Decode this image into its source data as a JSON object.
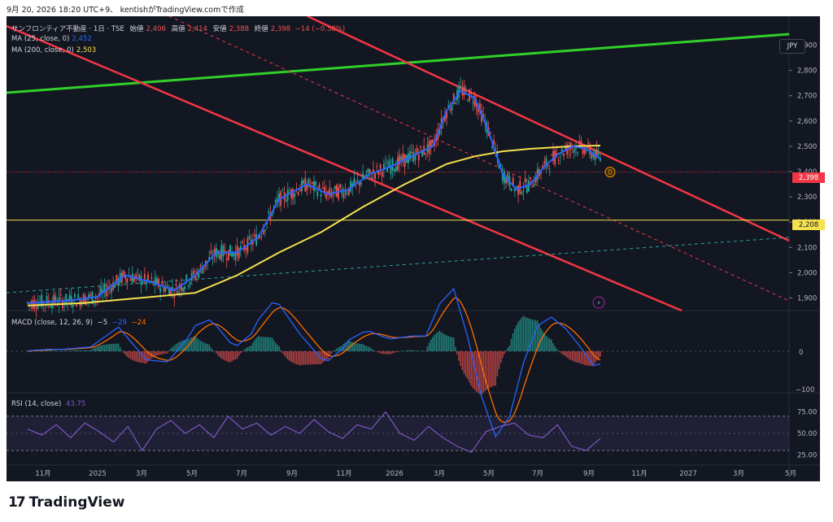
{
  "header": {
    "datetime": "9月 20, 2026 18:20 UTC+9",
    "author_line": "kentishがTradingView.comで作成"
  },
  "legend": {
    "title": "サンフロンティア不動産 · 1日 · TSE",
    "ohlc": [
      {
        "label": "始値",
        "value": "2,406"
      },
      {
        "label": "高値",
        "value": "2,414"
      },
      {
        "label": "安値",
        "value": "2,388"
      },
      {
        "label": "終値",
        "value": "2,398"
      }
    ],
    "change": "−14 (−0.58%)",
    "ma25_label": "MA (25, close, 0)",
    "ma25_value": "2,452",
    "ma200_label": "MA (200, close, 0)",
    "ma200_value": "2,503",
    "macd_label": "MACD (close, 12, 26, 9)",
    "macd_v1": "−5",
    "macd_v2": "−29",
    "macd_v3": "−24",
    "rsi_label": "RSI (14, close)",
    "rsi_value": "43.75"
  },
  "currency": "JPY",
  "last_price": "2,398",
  "hline_price": "2,208",
  "badge_d": "D",
  "brand": "TradingView",
  "colors": {
    "bg": "#131722",
    "up": "#26a69a",
    "down": "#ef5350",
    "ma25": "#2962ff",
    "ma200": "#f5e04e",
    "channel": "#f23645",
    "green_line": "#31d02a",
    "macd": "#2962ff",
    "signal": "#ff6d00",
    "rsi": "#7e57c2"
  },
  "chart_data": {
    "type": "candlestick",
    "y_ticks": [
      "2,900",
      "2,800",
      "2,700",
      "2,600",
      "2,500",
      "2,400",
      "2,300",
      "2,200",
      "2,100",
      "2,000",
      "1,900"
    ],
    "x_ticks": [
      "11月",
      "2025",
      "3月",
      "5月",
      "7月",
      "9月",
      "11月",
      "2026",
      "3月",
      "5月",
      "7月",
      "9月",
      "11月",
      "2027",
      "3月",
      "5月"
    ],
    "macd_ticks": [
      "0",
      "−100"
    ],
    "rsi_ticks": [
      "75.00",
      "50.00",
      "25.00"
    ],
    "price_range": [
      1850,
      2950
    ],
    "ma25_path": [
      [
        0,
        1880
      ],
      [
        6,
        1890
      ],
      [
        10,
        1905
      ],
      [
        14,
        1990
      ],
      [
        18,
        1960
      ],
      [
        21,
        1930
      ],
      [
        24,
        1990
      ],
      [
        27,
        2080
      ],
      [
        30,
        2080
      ],
      [
        33,
        2140
      ],
      [
        36,
        2290
      ],
      [
        40,
        2350
      ],
      [
        43,
        2310
      ],
      [
        46,
        2330
      ],
      [
        49,
        2390
      ],
      [
        52,
        2420
      ],
      [
        55,
        2460
      ],
      [
        58,
        2500
      ],
      [
        60,
        2640
      ],
      [
        62,
        2720
      ],
      [
        64,
        2690
      ],
      [
        66,
        2560
      ],
      [
        68,
        2390
      ],
      [
        70,
        2330
      ],
      [
        72,
        2350
      ],
      [
        74,
        2420
      ],
      [
        76,
        2470
      ],
      [
        78,
        2500
      ],
      [
        80,
        2490
      ],
      [
        82,
        2450
      ]
    ],
    "ma200_path": [
      [
        0,
        1870
      ],
      [
        8,
        1880
      ],
      [
        16,
        1900
      ],
      [
        24,
        1920
      ],
      [
        30,
        1990
      ],
      [
        36,
        2080
      ],
      [
        42,
        2160
      ],
      [
        48,
        2260
      ],
      [
        54,
        2350
      ],
      [
        60,
        2430
      ],
      [
        64,
        2460
      ],
      [
        68,
        2480
      ],
      [
        72,
        2490
      ],
      [
        78,
        2500
      ],
      [
        82,
        2503
      ]
    ],
    "rsi_path": [
      55,
      48,
      60,
      45,
      62,
      52,
      40,
      58,
      30,
      55,
      65,
      50,
      60,
      45,
      70,
      55,
      62,
      48,
      58,
      50,
      66,
      52,
      44,
      60,
      55,
      75,
      50,
      42,
      58,
      45,
      35,
      28,
      52,
      58,
      62,
      48,
      45,
      60,
      35,
      30,
      44
    ]
  }
}
